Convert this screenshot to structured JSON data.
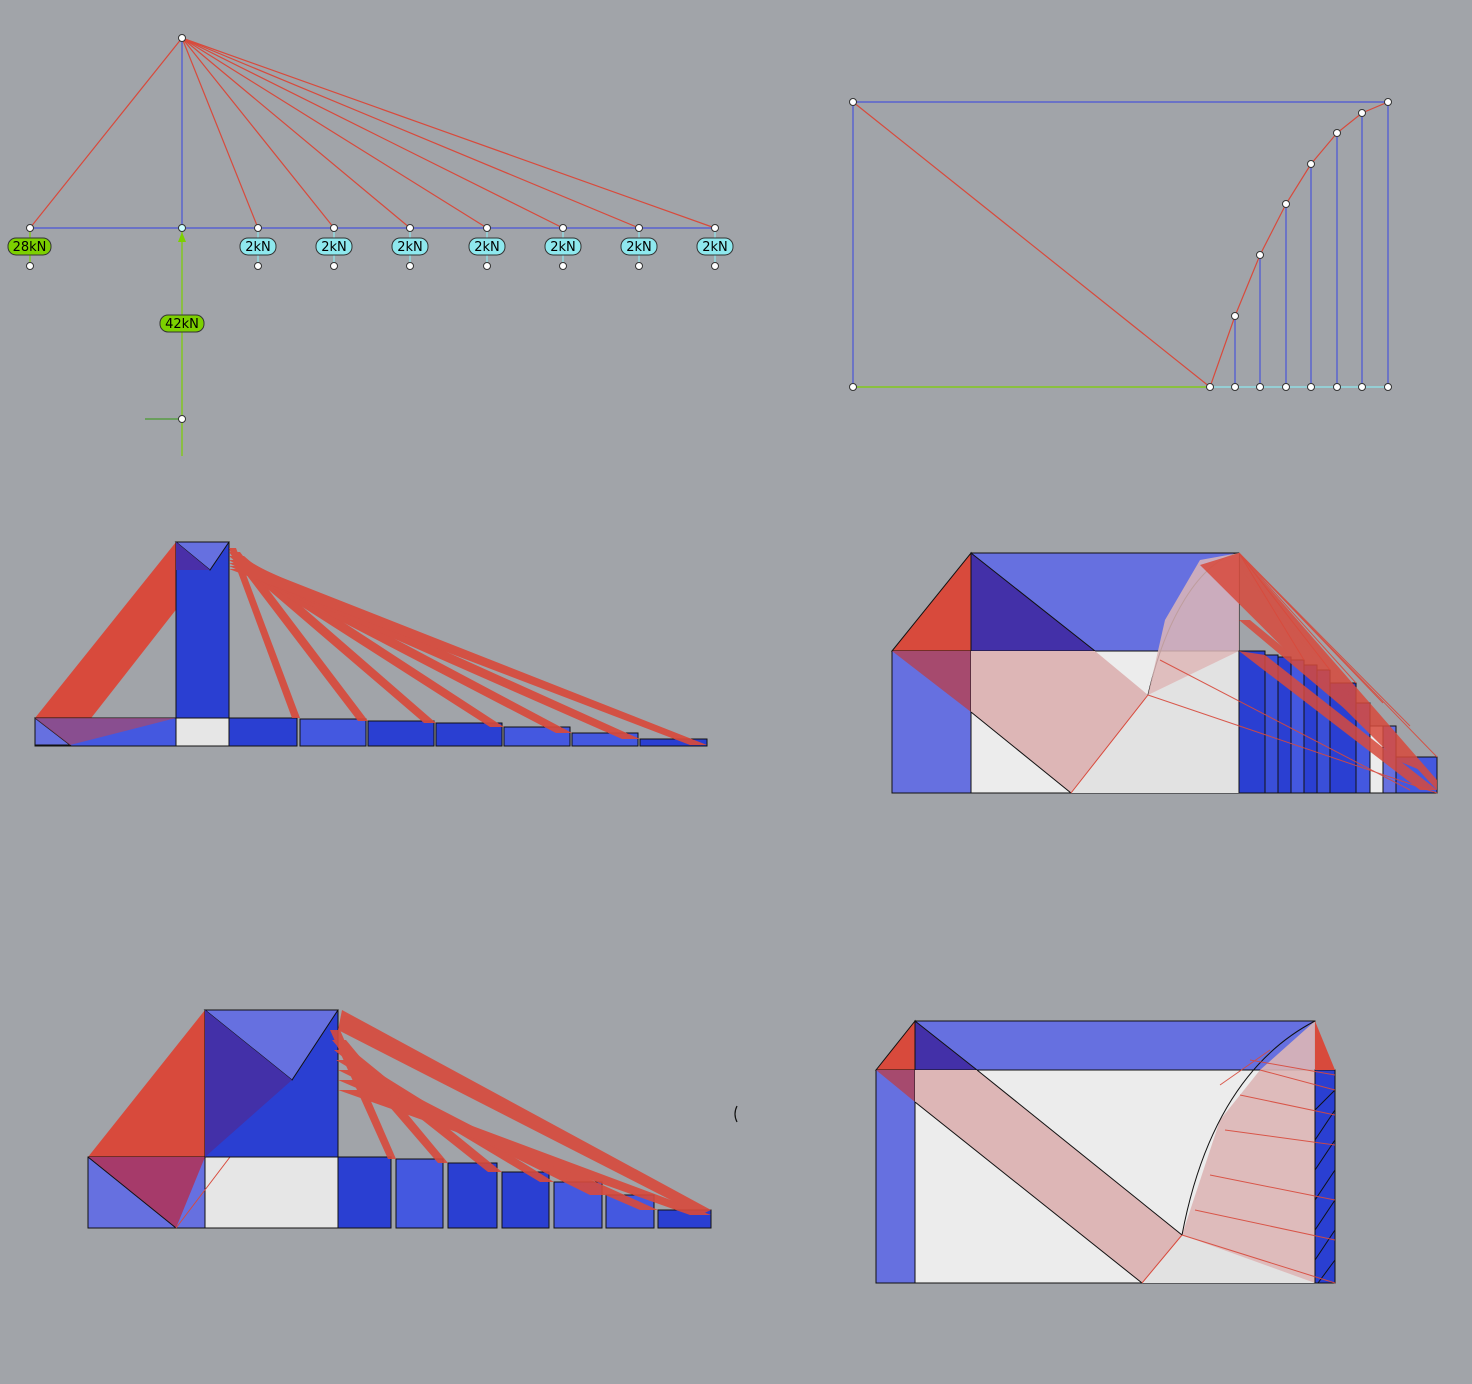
{
  "diagram": {
    "colors": {
      "background": "#a1a4a9",
      "compression": "#3a4fd8",
      "compression_light": "#6670e0",
      "tension": "#d84a3c",
      "tension_light": "#ddb6b6",
      "void": "#ececec",
      "reaction": "#7cd000",
      "load": "#8ee8ee"
    },
    "reaction_labels": [
      "28kN",
      "42kN"
    ],
    "load_labels": [
      "2kN",
      "2kN",
      "2kN",
      "2kN",
      "2kN",
      "2kN",
      "2kN"
    ]
  }
}
